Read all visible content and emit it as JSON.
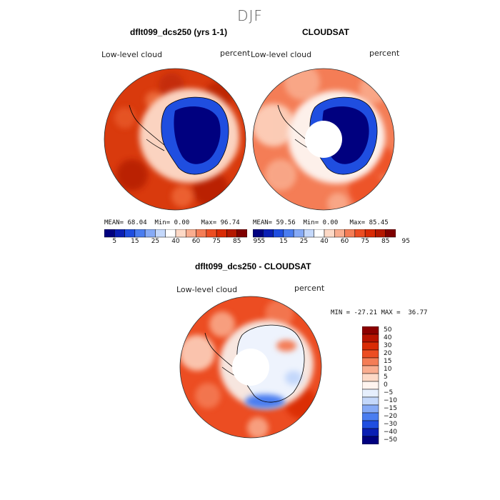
{
  "main_title": "DJF",
  "panels": [
    {
      "title": "dflt099_dcs250 (yrs 1-1)",
      "variable": "Low-level cloud",
      "units": "percent",
      "stats": {
        "mean": "68.04",
        "min": "0.00",
        "max": "96.74"
      }
    },
    {
      "title": "CLOUDSAT",
      "variable": "Low-level cloud",
      "units": "percent",
      "stats": {
        "mean": "59.56",
        "min": "0.00",
        "max": "85.45"
      }
    }
  ],
  "stats_labels": {
    "mean": "MEAN=",
    "min": "Min=",
    "max": "Max="
  },
  "colorbar_top": {
    "colors": [
      "#00007f",
      "#0a1fb4",
      "#1f4ee0",
      "#4a7df0",
      "#86aaf6",
      "#c4d8fb",
      "#ffffff",
      "#fdd9c6",
      "#f9ad8f",
      "#f47d56",
      "#ec4d22",
      "#d92b05",
      "#b41800",
      "#7f0000"
    ],
    "tick_labels": [
      "5",
      "15",
      "25",
      "40",
      "60",
      "75",
      "85",
      "95"
    ]
  },
  "diff_panel": {
    "title": "dflt099_dcs250 - CLOUDSAT",
    "variable": "Low-level cloud",
    "units": "percent",
    "minmax_text": "MIN = -27.21 MAX =  36.77"
  },
  "colorbar_diff": {
    "levels": [
      "50",
      "40",
      "30",
      "20",
      "15",
      "10",
      "5",
      "0",
      "−5",
      "−10",
      "−15",
      "−20",
      "−30",
      "−40",
      "−50"
    ],
    "colors": [
      "#8c0000",
      "#b81300",
      "#d92b05",
      "#ec4d22",
      "#f47d56",
      "#f9ad8f",
      "#fdd9c6",
      "#fff4ef",
      "#e6effd",
      "#c4d8fb",
      "#86aaf6",
      "#4a7df0",
      "#1f4ee0",
      "#0a1fb4",
      "#00007f"
    ]
  }
}
